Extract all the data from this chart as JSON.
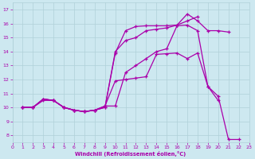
{
  "xlabel": "Windchill (Refroidissement éolien,°C)",
  "bg_color": "#cde8f0",
  "line_color": "#aa00aa",
  "grid_color": "#b0d0d8",
  "xmin": 0,
  "xmax": 23,
  "ymin": 7.5,
  "ymax": 17.5,
  "yticks": [
    8,
    9,
    10,
    11,
    12,
    13,
    14,
    15,
    16,
    17
  ],
  "xticks": [
    0,
    1,
    2,
    3,
    4,
    5,
    6,
    7,
    8,
    9,
    10,
    11,
    12,
    13,
    14,
    15,
    16,
    17,
    18,
    19,
    20,
    21,
    22,
    23
  ],
  "lines": [
    {
      "x": [
        1,
        2,
        3,
        4,
        5,
        6,
        7,
        8,
        9,
        10,
        11,
        12,
        13,
        14,
        15,
        16,
        17,
        18,
        19,
        20
      ],
      "y": [
        10,
        10,
        10.6,
        10.5,
        10.0,
        9.8,
        9.7,
        9.8,
        10.1,
        11.9,
        12.0,
        12.1,
        12.2,
        13.8,
        13.85,
        13.9,
        13.5,
        13.9,
        11.5,
        10.5
      ]
    },
    {
      "x": [
        1,
        2,
        3,
        4,
        5,
        6,
        7,
        8,
        9,
        10,
        11,
        12,
        13,
        14,
        15,
        16,
        17,
        18
      ],
      "y": [
        10,
        10,
        10.6,
        10.5,
        10.0,
        9.8,
        9.7,
        9.8,
        10.0,
        13.9,
        15.5,
        15.8,
        15.85,
        15.85,
        15.85,
        15.9,
        16.2,
        16.5
      ]
    },
    {
      "x": [
        1,
        2,
        3,
        4,
        5,
        6,
        7,
        8,
        9,
        10,
        11,
        12,
        13,
        14,
        15,
        16,
        17,
        18,
        19,
        20,
        21
      ],
      "y": [
        10,
        10,
        10.6,
        10.5,
        10.0,
        9.8,
        9.7,
        9.8,
        10.0,
        14.0,
        14.8,
        15.0,
        15.5,
        15.6,
        15.7,
        15.9,
        16.7,
        16.2,
        15.5,
        15.5,
        15.4
      ]
    },
    {
      "x": [
        1,
        2,
        3,
        4,
        5,
        6,
        7,
        8,
        9,
        10,
        11,
        12,
        13,
        14,
        15,
        16,
        17,
        18,
        19,
        20,
        21,
        22
      ],
      "y": [
        10,
        10,
        10.5,
        10.5,
        10.0,
        9.8,
        9.7,
        9.8,
        10.1,
        10.1,
        12.5,
        13.0,
        13.5,
        14.0,
        14.2,
        15.85,
        15.9,
        15.5,
        11.5,
        10.8,
        7.7,
        7.7
      ]
    }
  ]
}
